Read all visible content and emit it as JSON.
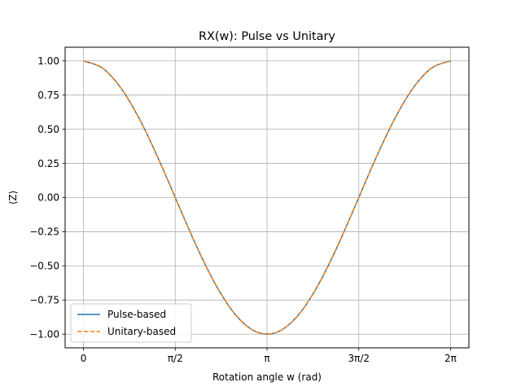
{
  "chart_data": {
    "type": "line",
    "title": "RX(w): Pulse vs Unitary",
    "xlabel": "Rotation angle w (rad)",
    "ylabel": "⟨Z⟩",
    "xlim": [
      -0.314,
      6.597
    ],
    "ylim": [
      -1.1,
      1.1
    ],
    "x_ticks": [
      {
        "value": 0,
        "label": "0"
      },
      {
        "value": 1.5708,
        "label": "π/2"
      },
      {
        "value": 3.1416,
        "label": "π"
      },
      {
        "value": 4.7124,
        "label": "3π/2"
      },
      {
        "value": 6.2832,
        "label": "2π"
      }
    ],
    "y_ticks": [
      {
        "value": 1.0,
        "label": "1.00"
      },
      {
        "value": 0.75,
        "label": "0.75"
      },
      {
        "value": 0.5,
        "label": "0.50"
      },
      {
        "value": 0.25,
        "label": "0.25"
      },
      {
        "value": 0.0,
        "label": "0.00"
      },
      {
        "value": -0.25,
        "label": "−0.25"
      },
      {
        "value": -0.5,
        "label": "−0.50"
      },
      {
        "value": -0.75,
        "label": "−0.75"
      },
      {
        "value": -1.0,
        "label": "−1.00"
      }
    ],
    "grid": true,
    "legend_position": "lower-left",
    "x": [
      0,
      0.3307,
      0.6614,
      0.9921,
      1.3228,
      1.6535,
      1.9842,
      2.3149,
      2.6456,
      2.9763,
      3.3069,
      3.6376,
      3.9683,
      4.299,
      4.6297,
      4.9604,
      5.2911,
      5.6218,
      5.9525,
      6.2832
    ],
    "series": [
      {
        "name": "Pulse-based",
        "color": "#1f77b4",
        "style": "solid",
        "values": [
          1.0,
          0.9458,
          0.7891,
          0.5469,
          0.2455,
          -0.0826,
          -0.4017,
          -0.6773,
          -0.8795,
          -0.9864,
          -0.9864,
          -0.8795,
          -0.6773,
          -0.4017,
          -0.0826,
          0.2455,
          0.5469,
          0.7891,
          0.9458,
          1.0
        ]
      },
      {
        "name": "Unitary-based",
        "color": "#ff7f0e",
        "style": "dashed",
        "values": [
          1.0,
          0.9458,
          0.7891,
          0.5469,
          0.2455,
          -0.0826,
          -0.4017,
          -0.6773,
          -0.8795,
          -0.9864,
          -0.9864,
          -0.8795,
          -0.6773,
          -0.4017,
          -0.0826,
          0.2455,
          0.5469,
          0.7891,
          0.9458,
          1.0
        ]
      }
    ]
  }
}
